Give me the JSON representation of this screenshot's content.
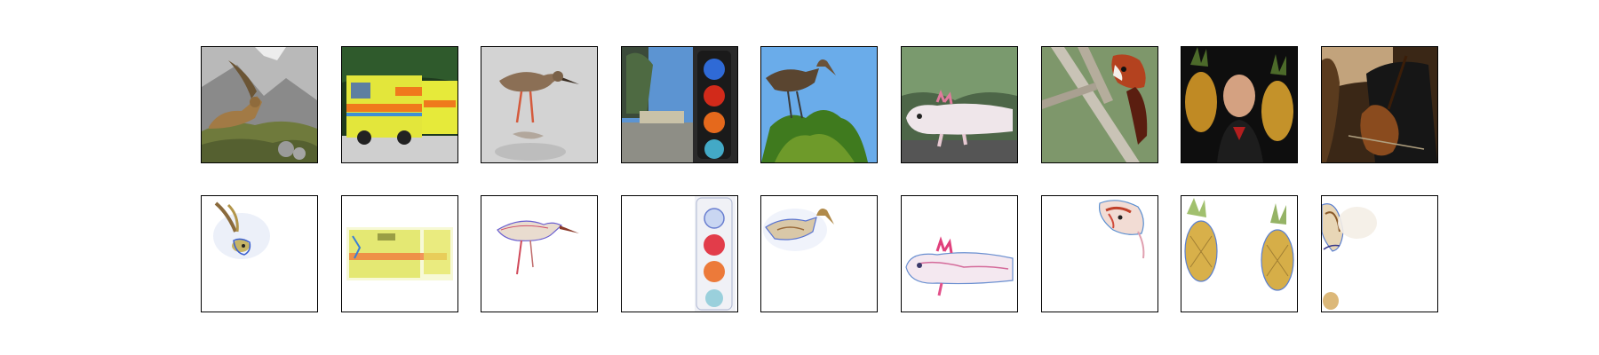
{
  "figure": {
    "top_row": [
      {
        "subject": "ibex"
      },
      {
        "subject": "ambulance"
      },
      {
        "subject": "redshank"
      },
      {
        "subject": "traffic-light"
      },
      {
        "subject": "limpkin"
      },
      {
        "subject": "axolotl"
      },
      {
        "subject": "red-panda"
      },
      {
        "subject": "pineapple"
      },
      {
        "subject": "cello"
      }
    ],
    "bottom_row": [
      {
        "subject": "ibex-saliency"
      },
      {
        "subject": "ambulance-saliency"
      },
      {
        "subject": "redshank-saliency"
      },
      {
        "subject": "traffic-light-saliency"
      },
      {
        "subject": "limpkin-saliency"
      },
      {
        "subject": "axolotl-saliency"
      },
      {
        "subject": "red-panda-saliency"
      },
      {
        "subject": "pineapple-saliency"
      },
      {
        "subject": "cello-saliency"
      }
    ]
  }
}
